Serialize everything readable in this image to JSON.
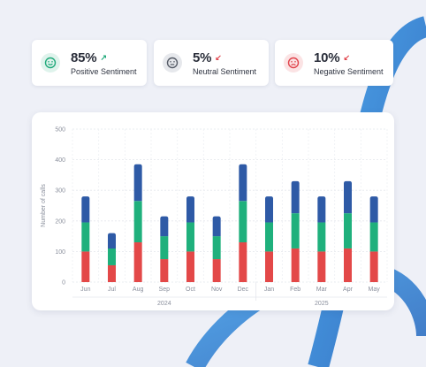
{
  "cards": [
    {
      "percent": "85%",
      "label": "Positive Sentiment",
      "icon": "smile-icon",
      "arrow": "arrow-up-right-icon",
      "icon_color": "#1fa97a",
      "icon_bg": "#dff3ec",
      "arrow_color": "#1fa97a"
    },
    {
      "percent": "5%",
      "label": "Neutral Sentiment",
      "icon": "neutral-face-icon",
      "arrow": "arrow-down-left-icon",
      "icon_color": "#555b66",
      "icon_bg": "#e6e8ec",
      "arrow_color": "#e0434b"
    },
    {
      "percent": "10%",
      "label": "Negative Sentiment",
      "icon": "frown-icon",
      "arrow": "arrow-down-left-icon",
      "icon_color": "#e0434b",
      "icon_bg": "#fbe3e4",
      "arrow_color": "#e0434b"
    }
  ],
  "chart_data": {
    "type": "bar",
    "stacked": true,
    "categories": [
      "Jun",
      "Jul",
      "Aug",
      "Sep",
      "Oct",
      "Nov",
      "Dec",
      "Jan",
      "Feb",
      "Mar",
      "Apr",
      "May"
    ],
    "year_labels": [
      "2024",
      "2025"
    ],
    "ylabel": "Number of calls",
    "ylim": [
      0,
      500
    ],
    "yticks": [
      0,
      100,
      200,
      300,
      400,
      500
    ],
    "grid": true,
    "series": [
      {
        "color": "#e34848",
        "values": [
          100,
          55,
          130,
          75,
          100,
          75,
          130,
          100,
          110,
          100,
          110,
          100
        ]
      },
      {
        "color": "#1fb07c",
        "values": [
          95,
          55,
          135,
          75,
          95,
          75,
          135,
          95,
          115,
          95,
          115,
          95
        ]
      },
      {
        "color": "#2e5aa6",
        "values": [
          85,
          50,
          120,
          65,
          85,
          65,
          120,
          85,
          105,
          85,
          105,
          85
        ]
      }
    ]
  },
  "colors": {
    "background": "#eef0f7",
    "deco_blue": "#2a7fd0"
  }
}
